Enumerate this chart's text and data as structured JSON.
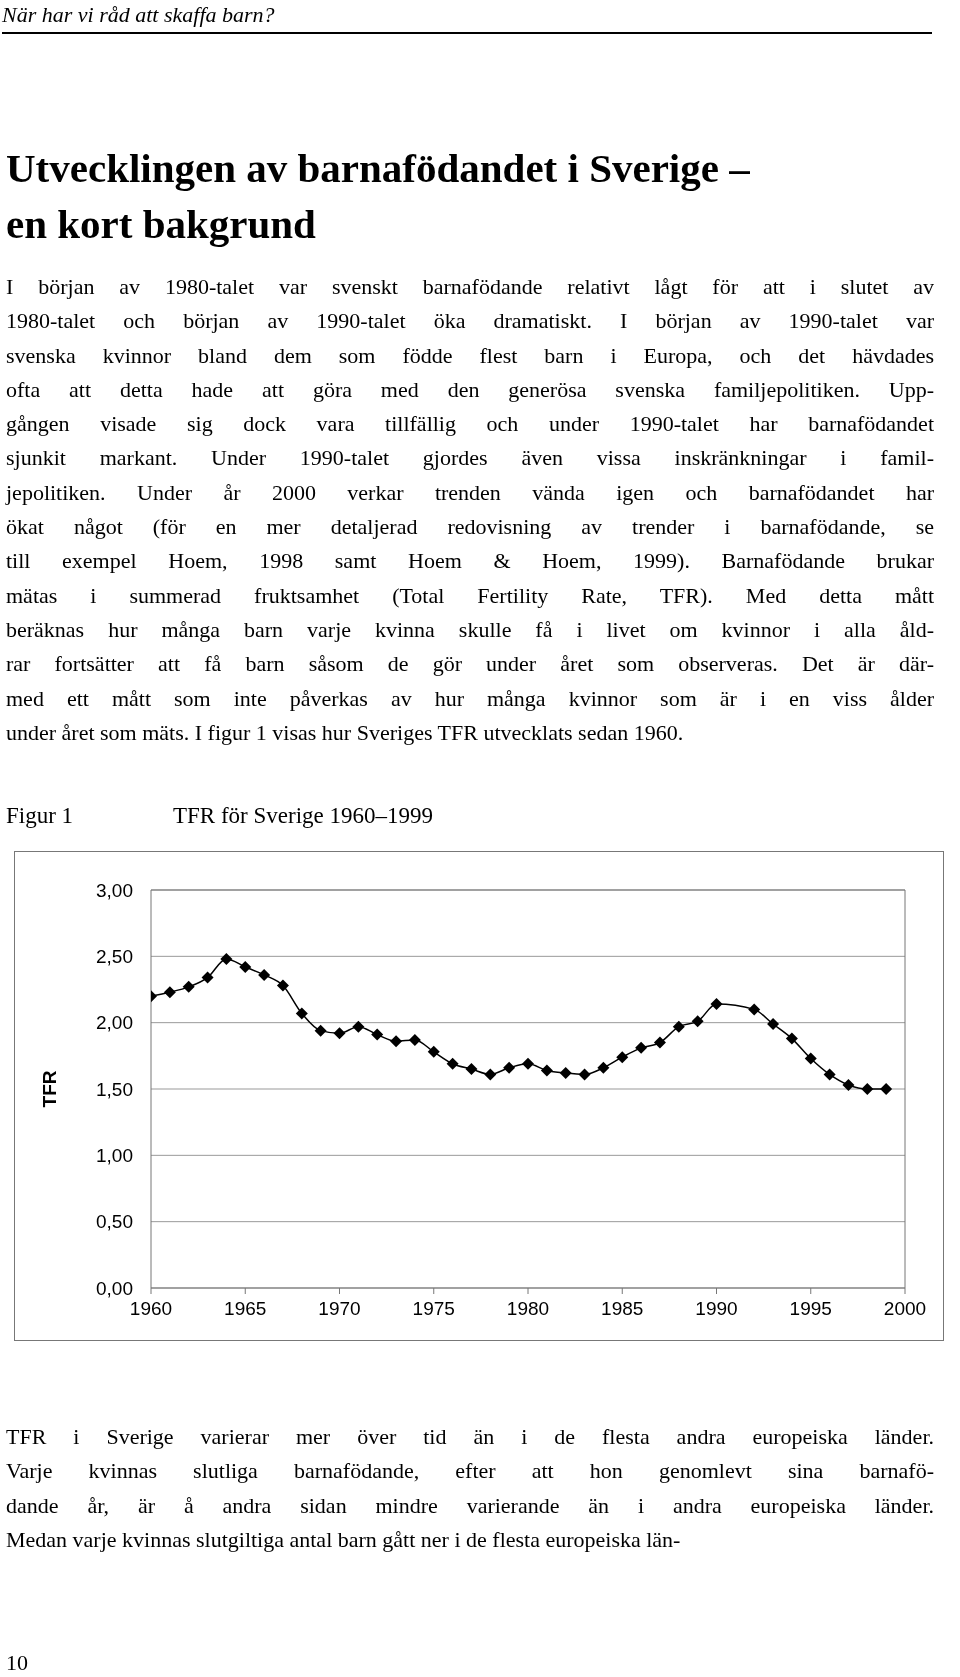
{
  "chart_data": {
    "type": "line",
    "title": "TFR för Sverige 1960–1999",
    "ylabel": "TFR",
    "annotations": [
      "När har vi råd att skaffa barn?",
      "Utvecklingen av barnafödandet i Sverige –\nen kort bakgrund",
      "I början av 1980-talet var svenskt barnafödande relativt lågt för att i slutet av\n1980-talet och början av 1990-talet öka dramatiskt. I början av 1990-talet var\nsvenska kvinnor bland dem som födde flest barn i Europa, och det hävdades\nofta att detta hade att göra med den generösa svenska familjepolitiken. Upp-\ngången visade sig dock vara tillfällig och under 1990-talet har barnafödandet\nsjunkit markant. Under 1990-talet gjordes även vissa inskränkningar i famil-\njepolitiken. Under år 2000 verkar trenden vända igen och barnafödandet har\nökat något (för en mer detaljerad redovisning av trender i barnafödande, se\ntill exempel Hoem, 1998 samt Hoem & Hoem, 1999). Barnafödande brukar\nmätas i summerad fruktsamhet (Total Fertility Rate, TFR). Med detta mått\nberäknas hur många barn varje kvinna skulle få i livet om kvinnor i alla åld-\nrar fortsätter att få barn såsom de gör under året som observeras. Det är där-\nmed ett mått som inte påverkas av hur många kvinnor som är i en viss ålder\nunder året som mäts. I figur 1 visas hur Sveriges TFR utvecklats sedan 1960.",
      "Figur 1",
      "TFR i Sverige varierar mer över tid än i de flesta andra europeiska länder.\nVarje kvinnas slutliga barnafödande, efter att hon genomlevt sina barnafö-\ndande år, är å andra sidan mindre varierande än i andra europeiska länder.\nMedan varje kvinnas slutgiltiga antal barn gått ner i de flesta europeiska län-",
      "10"
    ],
    "x": [
      1960,
      1961,
      1962,
      1963,
      1964,
      1965,
      1966,
      1967,
      1968,
      1969,
      1970,
      1971,
      1972,
      1973,
      1974,
      1975,
      1976,
      1977,
      1978,
      1979,
      1980,
      1981,
      1982,
      1983,
      1984,
      1985,
      1986,
      1987,
      1988,
      1989,
      1990,
      1992,
      1993,
      1994,
      1995,
      1996,
      1997,
      1998,
      1999
    ],
    "series": [
      {
        "color": "#000000",
        "values": [
          2.2,
          2.23,
          2.27,
          2.34,
          2.48,
          2.42,
          2.36,
          2.28,
          2.07,
          1.94,
          1.92,
          1.97,
          1.91,
          1.86,
          1.87,
          1.78,
          1.69,
          1.65,
          1.61,
          1.66,
          1.69,
          1.64,
          1.62,
          1.61,
          1.66,
          1.74,
          1.81,
          1.85,
          1.97,
          2.01,
          2.14,
          2.1,
          1.99,
          1.88,
          1.73,
          1.61,
          1.53,
          1.5,
          1.5
        ]
      }
    ],
    "xlim": [
      1960,
      2000
    ],
    "xticks": [
      1960,
      1965,
      1970,
      1975,
      1980,
      1985,
      1990,
      1995,
      2000
    ],
    "ylim": [
      0,
      3
    ],
    "yticks": [
      {
        "value": 0,
        "label": "0,00"
      },
      {
        "value": 0.5,
        "label": "0,50"
      },
      {
        "value": 1,
        "label": "1,00"
      },
      {
        "value": 1.5,
        "label": "1,50"
      },
      {
        "value": 2,
        "label": "2,00"
      },
      {
        "value": 2.5,
        "label": "2,50"
      },
      {
        "value": 3,
        "label": "3,00"
      }
    ],
    "grid": "y",
    "legend": false,
    "marker": "diamond",
    "line_style": "solid"
  }
}
